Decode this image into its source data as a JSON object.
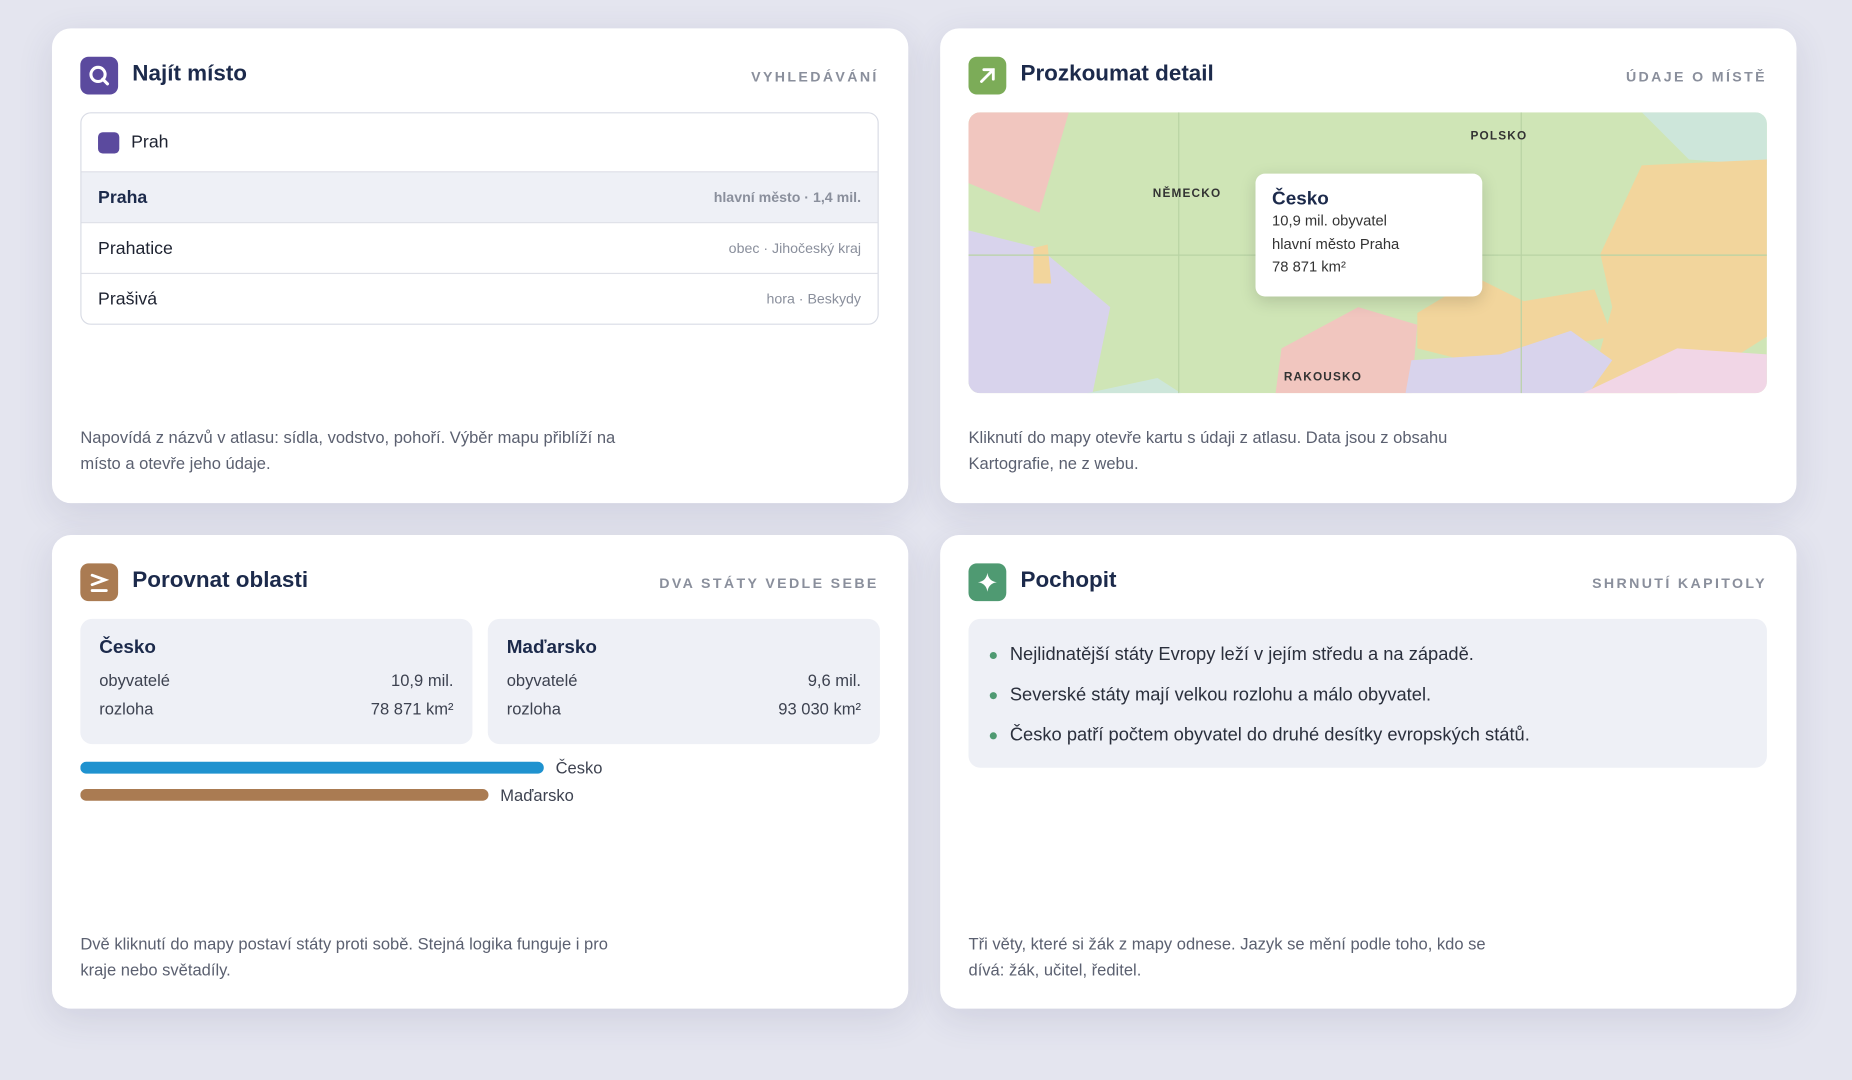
{
  "search": {
    "title": "Najít místo",
    "tag": "VYHLEDÁVÁNÍ",
    "query": "Prah",
    "results": [
      {
        "name": "Praha",
        "meta": "hlavní město · 1,4 mil."
      },
      {
        "name": "Prahatice",
        "meta": "obec · Jihočeský kraj"
      },
      {
        "name": "Prašivá",
        "meta": "hora · Beskydy"
      }
    ],
    "note": "Napovídá z názvů v atlasu: sídla, vodstvo, pohoří. Výběr mapu přiblíží na místo a otevře jeho údaje."
  },
  "detail": {
    "title": "Prozkoumat detail",
    "tag": "ÚDAJE O MÍSTĚ",
    "map_labels": [
      "NĚMECKO",
      "POLSKO",
      "RAKOUSKO"
    ],
    "popup": {
      "title": "Česko",
      "lines": [
        "10,9 mil. obyvatel",
        "hlavní město Praha",
        "78 871 km²"
      ]
    },
    "note": "Kliknutí do mapy otevře kartu s údaji z atlasu. Data jsou z obsahu Kartografie, ne z webu."
  },
  "compare": {
    "title": "Porovnat oblasti",
    "tag": "DVA STÁTY VEDLE SEBE",
    "regions": [
      {
        "name": "Česko",
        "rows": [
          {
            "label": "obyvatelé",
            "value": "10,9 mil."
          },
          {
            "label": "rozloha",
            "value": "78 871 km²"
          }
        ]
      },
      {
        "name": "Maďarsko",
        "rows": [
          {
            "label": "obyvatelé",
            "value": "9,6 mil."
          },
          {
            "label": "rozloha",
            "value": "93 030 km²"
          }
        ]
      }
    ],
    "bars": [
      {
        "name": "Česko",
        "value": 10.9,
        "color": "#1f92cf"
      },
      {
        "name": "Maďarsko",
        "value": 9.6,
        "color": "#aa7b52"
      }
    ],
    "note": "Dvě kliknutí do mapy postaví státy proti sobě. Stejná logika funguje i pro kraje nebo světadíly."
  },
  "summary": {
    "title": "Pochopit",
    "tag": "SHRNUTÍ KAPITOLY",
    "points": [
      "Nejlidnatější státy Evropy leží v jejím středu a na západě.",
      "Severské státy mají velkou rozlohu a málo obyvatel.",
      "Česko patří počtem obyvatel do druhé desítky evropských států."
    ],
    "note": "Tři věty, které si žák z mapy odnese. Jazyk se mění podle toho, kdo se dívá: žák, učitel, ředitel."
  }
}
